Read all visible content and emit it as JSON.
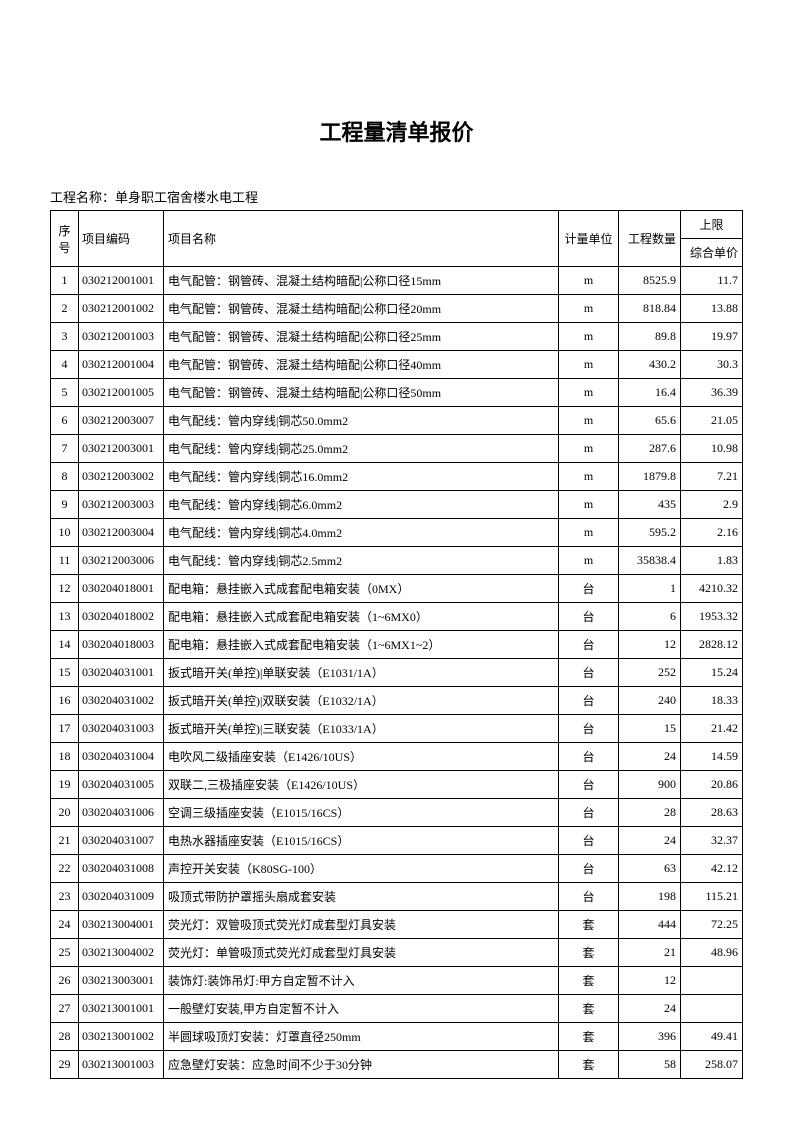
{
  "title": "工程量清单报价",
  "subtitle": "工程名称：单身职工宿舍楼水电工程",
  "headers": {
    "seq": "序号",
    "code": "项目编码",
    "name": "项目名称",
    "unit": "计量单位",
    "qty": "工程数量",
    "upper": "上限",
    "price": "综合单价"
  },
  "rows": [
    {
      "seq": "1",
      "code": "030212001001",
      "name": "电气配管：钢管砖、混凝土结构暗配|公称口径15mm",
      "unit": "m",
      "qty": "8525.9",
      "price": "11.7"
    },
    {
      "seq": "2",
      "code": "030212001002",
      "name": "电气配管：钢管砖、混凝土结构暗配|公称口径20mm",
      "unit": "m",
      "qty": "818.84",
      "price": "13.88"
    },
    {
      "seq": "3",
      "code": "030212001003",
      "name": "电气配管：钢管砖、混凝土结构暗配|公称口径25mm",
      "unit": "m",
      "qty": "89.8",
      "price": "19.97"
    },
    {
      "seq": "4",
      "code": "030212001004",
      "name": "电气配管：钢管砖、混凝土结构暗配|公称口径40mm",
      "unit": "m",
      "qty": "430.2",
      "price": "30.3"
    },
    {
      "seq": "5",
      "code": "030212001005",
      "name": "电气配管：钢管砖、混凝土结构暗配|公称口径50mm",
      "unit": "m",
      "qty": "16.4",
      "price": "36.39"
    },
    {
      "seq": "6",
      "code": "030212003007",
      "name": "电气配线：管内穿线|铜芯50.0mm2",
      "unit": "m",
      "qty": "65.6",
      "price": "21.05"
    },
    {
      "seq": "7",
      "code": "030212003001",
      "name": "电气配线：管内穿线|铜芯25.0mm2",
      "unit": "m",
      "qty": "287.6",
      "price": "10.98"
    },
    {
      "seq": "8",
      "code": "030212003002",
      "name": "电气配线：管内穿线|铜芯16.0mm2",
      "unit": "m",
      "qty": "1879.8",
      "price": "7.21"
    },
    {
      "seq": "9",
      "code": "030212003003",
      "name": "电气配线：管内穿线|铜芯6.0mm2",
      "unit": "m",
      "qty": "435",
      "price": "2.9"
    },
    {
      "seq": "10",
      "code": "030212003004",
      "name": "电气配线：管内穿线|铜芯4.0mm2",
      "unit": "m",
      "qty": "595.2",
      "price": "2.16"
    },
    {
      "seq": "11",
      "code": "030212003006",
      "name": "电气配线：管内穿线|铜芯2.5mm2",
      "unit": "m",
      "qty": "35838.4",
      "price": "1.83"
    },
    {
      "seq": "12",
      "code": "030204018001",
      "name": "配电箱：悬挂嵌入式成套配电箱安装（0MX）",
      "unit": "台",
      "qty": "1",
      "price": "4210.32"
    },
    {
      "seq": "13",
      "code": "030204018002",
      "name": "配电箱：悬挂嵌入式成套配电箱安装（1~6MX0）",
      "unit": "台",
      "qty": "6",
      "price": "1953.32"
    },
    {
      "seq": "14",
      "code": "030204018003",
      "name": "配电箱：悬挂嵌入式成套配电箱安装（1~6MX1~2）",
      "unit": "台",
      "qty": "12",
      "price": "2828.12"
    },
    {
      "seq": "15",
      "code": "030204031001",
      "name": "扳式暗开关(单控)|单联安装（E1031/1A）",
      "unit": "台",
      "qty": "252",
      "price": "15.24"
    },
    {
      "seq": "16",
      "code": "030204031002",
      "name": "扳式暗开关(单控)|双联安装（E1032/1A）",
      "unit": "台",
      "qty": "240",
      "price": "18.33"
    },
    {
      "seq": "17",
      "code": "030204031003",
      "name": "扳式暗开关(单控)|三联安装（E1033/1A）",
      "unit": "台",
      "qty": "15",
      "price": "21.42"
    },
    {
      "seq": "18",
      "code": "030204031004",
      "name": "电吹风二级插座安装（E1426/10US）",
      "unit": "台",
      "qty": "24",
      "price": "14.59"
    },
    {
      "seq": "19",
      "code": "030204031005",
      "name": "双联二,三极插座安装（E1426/10US）",
      "unit": "台",
      "qty": "900",
      "price": "20.86"
    },
    {
      "seq": "20",
      "code": "030204031006",
      "name": "空调三级插座安装（E1015/16CS）",
      "unit": "台",
      "qty": "28",
      "price": "28.63"
    },
    {
      "seq": "21",
      "code": "030204031007",
      "name": "电热水器插座安装（E1015/16CS）",
      "unit": "台",
      "qty": "24",
      "price": "32.37"
    },
    {
      "seq": "22",
      "code": "030204031008",
      "name": "声控开关安装（K80SG-100）",
      "unit": "台",
      "qty": "63",
      "price": "42.12"
    },
    {
      "seq": "23",
      "code": "030204031009",
      "name": "吸顶式带防护罩摇头扇成套安装",
      "unit": "台",
      "qty": "198",
      "price": "115.21"
    },
    {
      "seq": "24",
      "code": "030213004001",
      "name": "荧光灯：双管吸顶式荧光灯成套型灯具安装",
      "unit": "套",
      "qty": "444",
      "price": "72.25"
    },
    {
      "seq": "25",
      "code": "030213004002",
      "name": "荧光灯：单管吸顶式荧光灯成套型灯具安装",
      "unit": "套",
      "qty": "21",
      "price": "48.96"
    },
    {
      "seq": "26",
      "code": "030213003001",
      "name": "装饰灯:装饰吊灯:甲方自定暂不计入",
      "unit": "套",
      "qty": "12",
      "price": ""
    },
    {
      "seq": "27",
      "code": "030213001001",
      "name": "一般壁灯安装,甲方自定暂不计入",
      "unit": "套",
      "qty": "24",
      "price": ""
    },
    {
      "seq": "28",
      "code": "030213001002",
      "name": "半圆球吸顶灯安装：灯罩直径250mm",
      "unit": "套",
      "qty": "396",
      "price": "49.41"
    },
    {
      "seq": "29",
      "code": "030213001003",
      "name": "应急壁灯安装：应急时间不少于30分钟",
      "unit": "套",
      "qty": "58",
      "price": "258.07"
    }
  ]
}
